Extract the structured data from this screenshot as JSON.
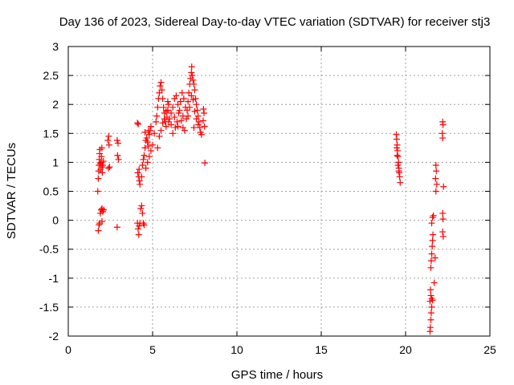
{
  "chart_data": {
    "type": "scatter",
    "title": "Day 136 of 2023, Sidereal Day-to-day VTEC variation (SDTVAR) for receiver stj3",
    "xlabel": "GPS time / hours",
    "ylabel": "SDTVAR / TECUs",
    "xlim": [
      0,
      25
    ],
    "ylim": [
      -2,
      3
    ],
    "xticks": [
      0,
      5,
      10,
      15,
      20,
      25
    ],
    "yticks": [
      -2,
      -1.5,
      -1,
      -0.5,
      0,
      0.5,
      1,
      1.5,
      2,
      2.5,
      3
    ],
    "xtick_labels": [
      "0",
      "5",
      "10",
      "15",
      "20",
      "25"
    ],
    "ytick_labels": [
      "-2",
      "-1.5",
      "-1",
      "-0.5",
      "0",
      "0.5",
      "1",
      "1.5",
      "2",
      "2.5",
      "3"
    ],
    "grid": true,
    "marker": "plus",
    "color": "#ff0000",
    "series": [
      {
        "name": "SDTVAR",
        "points": [
          [
            1.75,
            0.5
          ],
          [
            1.78,
            0.72
          ],
          [
            1.8,
            0.85
          ],
          [
            1.82,
            0.95
          ],
          [
            1.84,
            1.05
          ],
          [
            1.86,
            1.15
          ],
          [
            1.88,
            1.22
          ],
          [
            1.9,
            0.98
          ],
          [
            1.92,
            0.88
          ],
          [
            1.95,
            1.0
          ],
          [
            1.97,
            1.1
          ],
          [
            1.99,
            1.25
          ],
          [
            2.0,
            0.92
          ],
          [
            2.02,
            0.82
          ],
          [
            2.05,
            0.95
          ],
          [
            2.08,
            1.02
          ],
          [
            1.78,
            -0.18
          ],
          [
            1.82,
            -0.08
          ],
          [
            1.86,
            -0.05
          ],
          [
            1.9,
            0.12
          ],
          [
            1.95,
            0.18
          ],
          [
            2.0,
            0.2
          ],
          [
            2.05,
            0.15
          ],
          [
            2.1,
            0.18
          ],
          [
            2.0,
            -0.02
          ],
          [
            2.35,
            1.38
          ],
          [
            2.4,
            1.45
          ],
          [
            2.42,
            1.3
          ],
          [
            2.38,
            0.9
          ],
          [
            2.45,
            0.92
          ],
          [
            2.9,
            1.38
          ],
          [
            2.95,
            1.33
          ],
          [
            2.92,
            1.12
          ],
          [
            2.98,
            1.05
          ],
          [
            2.9,
            -0.12
          ],
          [
            4.1,
            1.68
          ],
          [
            4.15,
            1.66
          ],
          [
            4.12,
            0.82
          ],
          [
            4.18,
            0.75
          ],
          [
            4.22,
            0.68
          ],
          [
            4.25,
            0.62
          ],
          [
            4.2,
            0.88
          ],
          [
            4.1,
            -0.05
          ],
          [
            4.14,
            -0.15
          ],
          [
            4.18,
            -0.25
          ],
          [
            4.2,
            -0.1
          ],
          [
            4.25,
            -0.05
          ],
          [
            4.3,
            0.2
          ],
          [
            4.35,
            0.25
          ],
          [
            4.4,
            0.12
          ],
          [
            4.45,
            -0.05
          ],
          [
            4.5,
            -0.08
          ],
          [
            4.35,
            0.75
          ],
          [
            4.4,
            0.95
          ],
          [
            4.45,
            1.05
          ],
          [
            4.5,
            1.12
          ],
          [
            4.55,
            1.25
          ],
          [
            4.6,
            1.38
          ],
          [
            4.65,
            1.42
          ],
          [
            4.7,
            1.35
          ],
          [
            4.75,
            1.28
          ],
          [
            4.8,
            1.48
          ],
          [
            4.85,
            1.55
          ],
          [
            4.9,
            1.62
          ],
          [
            4.6,
            0.9
          ],
          [
            4.7,
            1.0
          ],
          [
            4.8,
            1.1
          ],
          [
            4.9,
            1.2
          ],
          [
            4.55,
            1.52
          ],
          [
            4.75,
            1.55
          ],
          [
            5.0,
            1.3
          ],
          [
            5.1,
            1.5
          ],
          [
            5.2,
            1.7
          ],
          [
            5.25,
            1.8
          ],
          [
            5.3,
            1.95
          ],
          [
            5.35,
            2.1
          ],
          [
            5.4,
            2.2
          ],
          [
            5.45,
            2.32
          ],
          [
            5.5,
            2.38
          ],
          [
            5.55,
            2.25
          ],
          [
            5.6,
            2.1
          ],
          [
            5.65,
            1.95
          ],
          [
            5.7,
            1.85
          ],
          [
            5.75,
            1.7
          ],
          [
            5.8,
            1.62
          ],
          [
            5.85,
            1.78
          ],
          [
            5.9,
            1.9
          ],
          [
            5.95,
            2.0
          ],
          [
            5.3,
            1.25
          ],
          [
            5.4,
            1.45
          ],
          [
            5.5,
            1.55
          ],
          [
            5.6,
            1.68
          ],
          [
            5.7,
            1.75
          ],
          [
            5.8,
            1.88
          ],
          [
            5.9,
            2.05
          ],
          [
            5.95,
            1.7
          ],
          [
            6.0,
            1.75
          ],
          [
            6.1,
            1.85
          ],
          [
            6.2,
            1.95
          ],
          [
            6.3,
            2.1
          ],
          [
            6.4,
            2.15
          ],
          [
            6.5,
            2.0
          ],
          [
            6.6,
            1.9
          ],
          [
            6.7,
            1.72
          ],
          [
            6.8,
            1.6
          ],
          [
            6.9,
            1.55
          ],
          [
            6.2,
            1.5
          ],
          [
            6.35,
            1.6
          ],
          [
            6.45,
            1.7
          ],
          [
            6.55,
            1.85
          ],
          [
            6.65,
            2.05
          ],
          [
            6.75,
            2.2
          ],
          [
            6.85,
            2.1
          ],
          [
            6.95,
            1.95
          ],
          [
            6.1,
            1.65
          ],
          [
            6.5,
            1.62
          ],
          [
            6.3,
            1.78
          ],
          [
            6.8,
            1.8
          ],
          [
            7.0,
            1.75
          ],
          [
            7.05,
            1.9
          ],
          [
            7.1,
            2.05
          ],
          [
            7.15,
            2.2
          ],
          [
            7.2,
            2.35
          ],
          [
            7.25,
            2.45
          ],
          [
            7.3,
            2.55
          ],
          [
            7.32,
            2.65
          ],
          [
            7.35,
            2.5
          ],
          [
            7.4,
            2.42
          ],
          [
            7.45,
            2.35
          ],
          [
            7.5,
            2.25
          ],
          [
            7.55,
            2.1
          ],
          [
            7.6,
            2.0
          ],
          [
            7.65,
            1.9
          ],
          [
            7.7,
            1.8
          ],
          [
            7.75,
            1.7
          ],
          [
            7.8,
            1.6
          ],
          [
            7.85,
            1.52
          ],
          [
            7.9,
            1.48
          ],
          [
            7.4,
            2.08
          ],
          [
            7.5,
            1.88
          ],
          [
            7.6,
            1.75
          ],
          [
            7.7,
            1.65
          ],
          [
            7.3,
            2.15
          ],
          [
            7.2,
            1.95
          ],
          [
            7.1,
            1.8
          ],
          [
            7.45,
            1.6
          ],
          [
            8.0,
            1.72
          ],
          [
            8.02,
            1.92
          ],
          [
            8.05,
            1.85
          ],
          [
            8.08,
            1.62
          ],
          [
            8.1,
            0.99
          ],
          [
            19.45,
            1.48
          ],
          [
            19.47,
            1.4
          ],
          [
            19.5,
            1.3
          ],
          [
            19.52,
            1.2
          ],
          [
            19.55,
            1.1
          ],
          [
            19.58,
            1.0
          ],
          [
            19.6,
            0.9
          ],
          [
            19.62,
            0.82
          ],
          [
            19.65,
            0.75
          ],
          [
            19.68,
            0.65
          ],
          [
            19.5,
            1.12
          ],
          [
            19.55,
            0.95
          ],
          [
            19.6,
            0.85
          ],
          [
            19.48,
            1.25
          ],
          [
            21.45,
            -1.92
          ],
          [
            21.47,
            -1.85
          ],
          [
            21.5,
            -1.72
          ],
          [
            21.52,
            -1.6
          ],
          [
            21.55,
            -1.5
          ],
          [
            21.45,
            -1.4
          ],
          [
            21.5,
            -1.3
          ],
          [
            21.55,
            -1.35
          ],
          [
            21.6,
            -1.38
          ],
          [
            21.48,
            -1.2
          ],
          [
            21.5,
            -0.82
          ],
          [
            21.52,
            -0.7
          ],
          [
            21.55,
            -0.58
          ],
          [
            21.58,
            -0.45
          ],
          [
            21.6,
            -0.35
          ],
          [
            21.62,
            -0.25
          ],
          [
            21.55,
            -0.05
          ],
          [
            21.6,
            0.05
          ],
          [
            21.65,
            0.08
          ],
          [
            21.75,
            -0.65
          ],
          [
            21.7,
            -1.08
          ],
          [
            21.8,
            0.95
          ],
          [
            21.82,
            0.85
          ],
          [
            21.78,
            0.72
          ],
          [
            21.85,
            0.62
          ],
          [
            21.8,
            0.5
          ],
          [
            22.2,
            1.7
          ],
          [
            22.22,
            1.65
          ],
          [
            22.18,
            1.5
          ],
          [
            22.2,
            1.42
          ],
          [
            22.25,
            0.58
          ],
          [
            22.2,
            0.12
          ],
          [
            22.22,
            0.02
          ],
          [
            22.2,
            -0.2
          ],
          [
            22.23,
            -0.28
          ]
        ]
      }
    ]
  }
}
